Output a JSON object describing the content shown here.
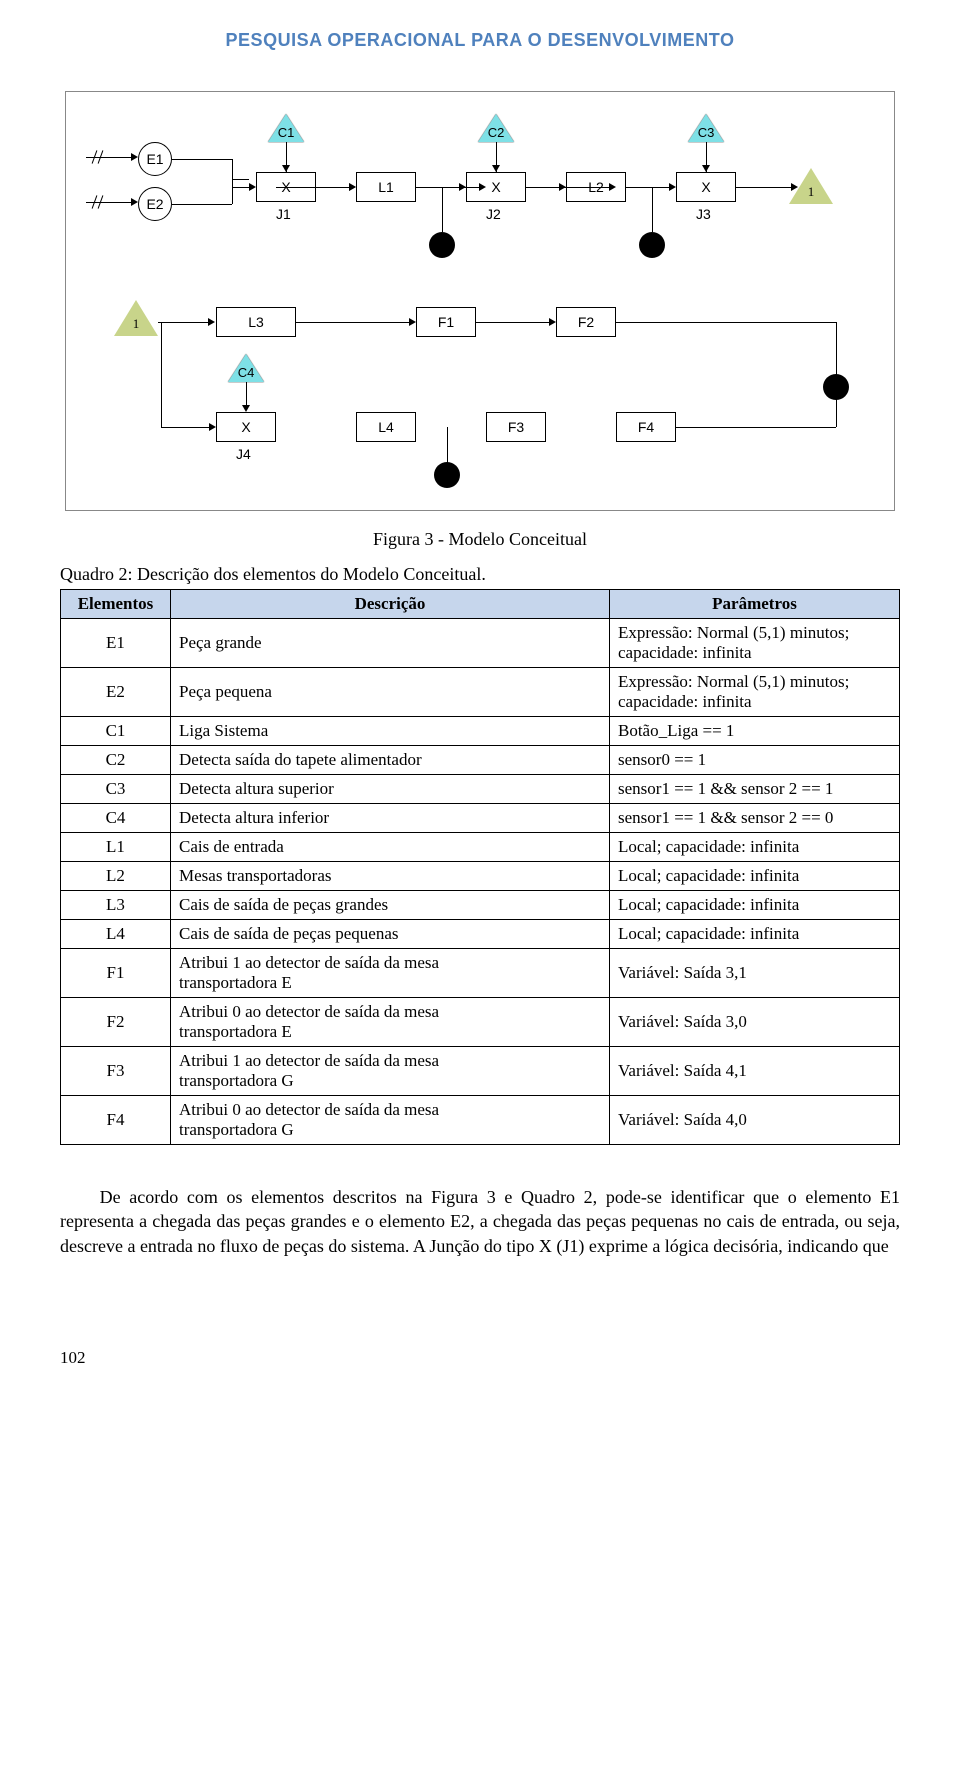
{
  "header_color": "#4f81bd",
  "header_text": "PESQUISA OPERACIONAL PARA O DESENVOLVIMENTO",
  "diagram": {
    "labels": {
      "E1": "E1",
      "E2": "E2",
      "C1": "C1",
      "C2": "C2",
      "C3": "C3",
      "C4": "C4",
      "X": "X",
      "L1": "L1",
      "L2": "L2",
      "L3": "L3",
      "L4": "L4",
      "J1": "J1",
      "J2": "J2",
      "J3": "J3",
      "J4": "J4",
      "F1": "F1",
      "F2": "F2",
      "F3": "F3",
      "F4": "F4",
      "one": "1"
    },
    "colors": {
      "cyan": "#7ee0e6",
      "olive": "#c8d48a",
      "black": "#000000",
      "box_bg": "#ffffff",
      "border": "#000000"
    },
    "caption": "Figura 3 - Modelo Conceitual"
  },
  "quadro_title": "Quadro 2: Descrição dos elementos do Modelo Conceitual.",
  "table": {
    "header_bg": "#c6d6ec",
    "columns": [
      "Elementos",
      "Descrição",
      "Parâmetros"
    ],
    "rows": [
      [
        "E1",
        "Peça grande",
        "Expressão: Normal (5,1) minutos;\ncapacidade: infinita"
      ],
      [
        "E2",
        "Peça pequena",
        "Expressão: Normal (5,1) minutos;\ncapacidade: infinita"
      ],
      [
        "C1",
        "Liga Sistema",
        "Botão_Liga == 1"
      ],
      [
        "C2",
        "Detecta saída do tapete alimentador",
        "sensor0 == 1"
      ],
      [
        "C3",
        "Detecta altura superior",
        "sensor1 == 1 && sensor 2  == 1"
      ],
      [
        "C4",
        "Detecta altura inferior",
        "sensor1 == 1 && sensor 2 == 0"
      ],
      [
        "L1",
        "Cais de entrada",
        " Local; capacidade: infinita"
      ],
      [
        "L2",
        "Mesas transportadoras",
        "Local; capacidade: infinita"
      ],
      [
        "L3",
        "Cais de saída de peças grandes",
        "Local; capacidade: infinita"
      ],
      [
        "L4",
        "Cais de saída de peças pequenas",
        "Local; capacidade: infinita"
      ],
      [
        "F1",
        "Atribui 1 ao detector de saída da mesa\ntransportadora E",
        "Variável: Saída 3,1"
      ],
      [
        "F2",
        "Atribui 0 ao detector de saída da mesa\ntransportadora E",
        "Variável: Saída 3,0"
      ],
      [
        "F3",
        "Atribui 1 ao detector de saída da mesa\ntransportadora G",
        "Variável: Saída 4,1"
      ],
      [
        "F4",
        "Atribui 0 ao detector de saída da mesa\ntransportadora G",
        "Variável: Saída 4,0"
      ]
    ]
  },
  "body_paragraph": "De acordo com os elementos descritos na Figura 3 e Quadro 2, pode-se identificar que o elemento E1 representa a chegada das peças grandes e o elemento E2, a chegada das peças pequenas no cais de entrada, ou seja, descreve a entrada no fluxo de peças do sistema. A Junção do tipo X (J1) exprime a lógica decisória, indicando que",
  "page_number": "102"
}
